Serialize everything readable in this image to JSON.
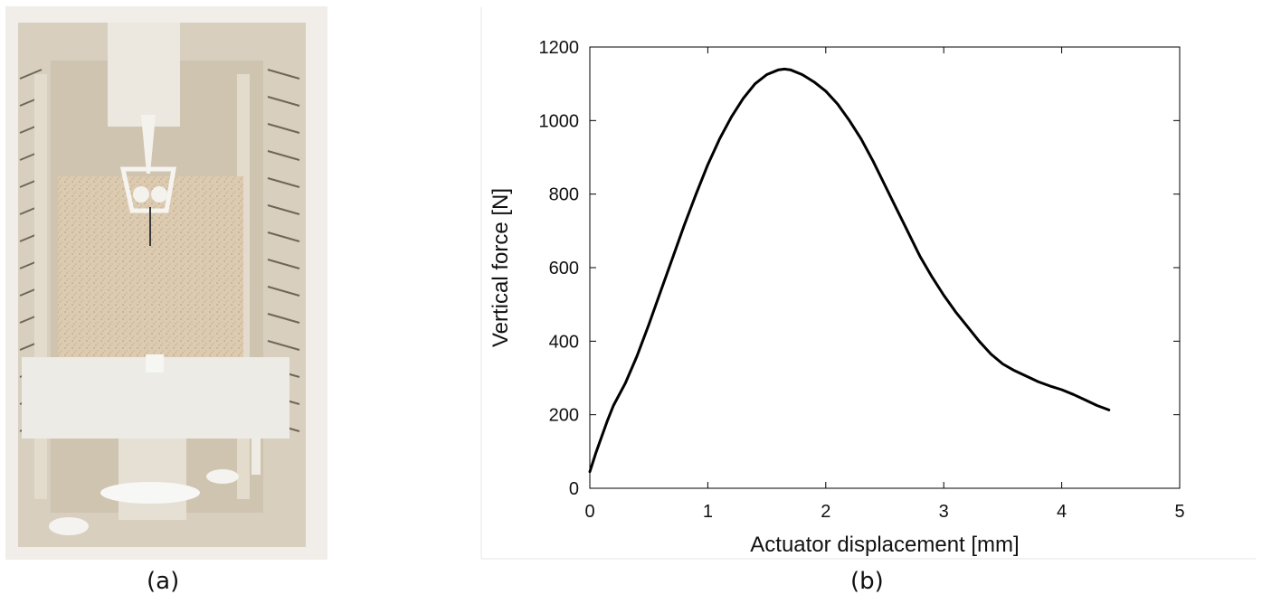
{
  "captions": {
    "left": "(a)",
    "right": "(b)"
  },
  "chart_data": {
    "type": "line",
    "title": "",
    "xlabel": "Actuator displacement [mm]",
    "ylabel": "Vertical force [N]",
    "xlim": [
      0,
      5
    ],
    "ylim": [
      0,
      1200
    ],
    "xticks": [
      "0",
      "1",
      "2",
      "3",
      "4",
      "5"
    ],
    "yticks": [
      "0",
      "200",
      "400",
      "600",
      "800",
      "1000",
      "1200"
    ],
    "grid": false,
    "legend": "none",
    "series": [
      {
        "color": "#000000",
        "x": [
          0.0,
          0.05,
          0.1,
          0.15,
          0.2,
          0.3,
          0.4,
          0.5,
          0.6,
          0.7,
          0.8,
          0.9,
          1.0,
          1.1,
          1.2,
          1.3,
          1.4,
          1.5,
          1.6,
          1.65,
          1.7,
          1.8,
          1.9,
          2.0,
          2.1,
          2.2,
          2.3,
          2.4,
          2.5,
          2.6,
          2.7,
          2.8,
          2.9,
          3.0,
          3.1,
          3.2,
          3.3,
          3.4,
          3.5,
          3.6,
          3.7,
          3.8,
          3.9,
          4.0,
          4.1,
          4.2,
          4.3,
          4.4
        ],
        "y": [
          45,
          95,
          140,
          185,
          225,
          285,
          360,
          445,
          535,
          625,
          715,
          800,
          880,
          950,
          1010,
          1060,
          1100,
          1125,
          1138,
          1140,
          1138,
          1125,
          1105,
          1080,
          1045,
          1000,
          950,
          890,
          825,
          760,
          695,
          630,
          575,
          525,
          480,
          440,
          400,
          365,
          338,
          320,
          305,
          290,
          278,
          268,
          255,
          240,
          225,
          213
        ]
      }
    ]
  }
}
